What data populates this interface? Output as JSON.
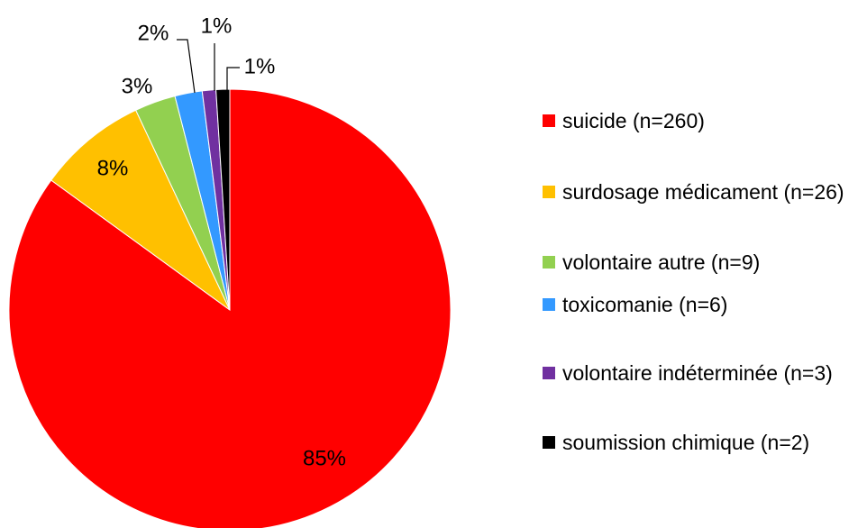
{
  "chart_data": {
    "type": "pie",
    "categories": [
      "suicide (n=260)",
      "surdosage médicament (n=26)",
      "volontaire autre (n=9)",
      "toxicomanie (n=6)",
      "volontaire indéterminée (n=3)",
      "soumission chimique (n=2)"
    ],
    "values": [
      85,
      8,
      3,
      2,
      1,
      1
    ],
    "value_labels": [
      "85%",
      "8%",
      "3%",
      "2%",
      "1%",
      "1%"
    ],
    "colors": [
      "#ff0000",
      "#ffc000",
      "#92d050",
      "#3399ff",
      "#7030a0",
      "#000000"
    ],
    "legend": "right"
  }
}
